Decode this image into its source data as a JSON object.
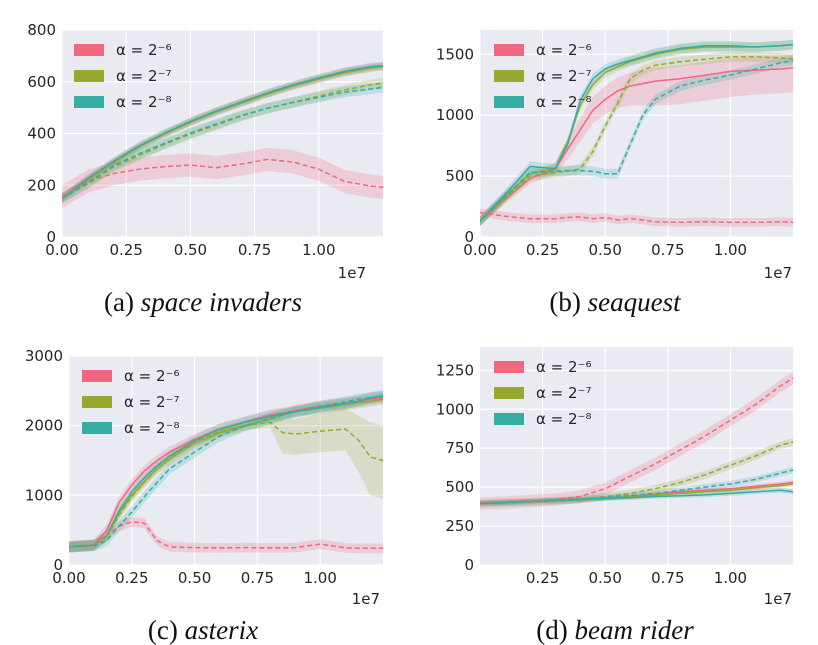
{
  "figure": {
    "colors": {
      "a6": "#f0677f",
      "a7": "#98a831",
      "a8": "#36ada4",
      "bg": "#eaeaf2",
      "grid": "#ffffff"
    },
    "legend": [
      {
        "key": "a6",
        "label": "α = 2⁻⁶"
      },
      {
        "key": "a7",
        "label": "α = 2⁻⁷"
      },
      {
        "key": "a8",
        "label": "α = 2⁻⁸"
      }
    ]
  },
  "chart_data": [
    {
      "type": "line",
      "id": "si",
      "caption_prefix": "(a) ",
      "caption_name": "space invaders",
      "x_offset_label": "1e7",
      "xlim": [
        0,
        12500000
      ],
      "ylim": [
        0,
        800
      ],
      "xticks": [
        0,
        2500000,
        5000000,
        7500000,
        10000000
      ],
      "xtick_labels": [
        "0.00",
        "0.25",
        "0.50",
        "0.75",
        "1.00"
      ],
      "yticks": [
        0,
        200,
        400,
        600,
        800
      ],
      "ytick_labels": [
        "0",
        "200",
        "400",
        "600",
        "800"
      ],
      "x": [
        0,
        1000000,
        2000000,
        3000000,
        4000000,
        5000000,
        6000000,
        7000000,
        8000000,
        9000000,
        10000000,
        11000000,
        12000000,
        12500000
      ],
      "series": [
        {
          "key": "a6",
          "style": "solid",
          "values": [
            150,
            225,
            290,
            350,
            400,
            445,
            485,
            520,
            555,
            585,
            612,
            638,
            655,
            660
          ],
          "band": 15
        },
        {
          "key": "a7",
          "style": "solid",
          "values": [
            150,
            222,
            288,
            348,
            398,
            443,
            483,
            518,
            552,
            583,
            610,
            635,
            652,
            658
          ],
          "band": 15
        },
        {
          "key": "a8",
          "style": "solid",
          "values": [
            150,
            226,
            292,
            352,
            402,
            447,
            487,
            522,
            557,
            588,
            615,
            640,
            658,
            662
          ],
          "band": 15
        },
        {
          "key": "a6",
          "style": "dashed",
          "values": [
            155,
            215,
            245,
            262,
            272,
            278,
            268,
            282,
            300,
            290,
            262,
            215,
            197,
            192
          ],
          "band": 45
        },
        {
          "key": "a7",
          "style": "dashed",
          "values": [
            150,
            205,
            270,
            315,
            358,
            398,
            432,
            468,
            497,
            520,
            545,
            568,
            588,
            595
          ],
          "band": 20
        },
        {
          "key": "a8",
          "style": "dashed",
          "values": [
            150,
            210,
            275,
            322,
            362,
            402,
            437,
            470,
            498,
            520,
            540,
            560,
            572,
            578
          ],
          "band": 20
        }
      ]
    },
    {
      "type": "line",
      "id": "sq",
      "caption_prefix": "(b) ",
      "caption_name": "seaquest",
      "x_offset_label": "1e7",
      "xlim": [
        0,
        12500000
      ],
      "ylim": [
        0,
        1700
      ],
      "xticks": [
        0,
        2500000,
        5000000,
        7500000,
        10000000
      ],
      "xtick_labels": [
        "0.00",
        "0.25",
        "0.50",
        "0.75",
        "1.00"
      ],
      "yticks": [
        0,
        500,
        1000,
        1500
      ],
      "ytick_labels": [
        "0",
        "500",
        "1000",
        "1500"
      ],
      "x": [
        0,
        1000000,
        2000000,
        3000000,
        3500000,
        4000000,
        4500000,
        5000000,
        5500000,
        6000000,
        6500000,
        7000000,
        8000000,
        9000000,
        10000000,
        11000000,
        12000000,
        12500000
      ],
      "series": [
        {
          "key": "a6",
          "style": "solid",
          "values": [
            130,
            310,
            480,
            560,
            720,
            880,
            1040,
            1130,
            1200,
            1240,
            1260,
            1280,
            1300,
            1330,
            1360,
            1370,
            1380,
            1390
          ],
          "band_hi": [
            40,
            40,
            40,
            50,
            80,
            100,
            110,
            110,
            110,
            110,
            110,
            110,
            110,
            110,
            110,
            110,
            110,
            110
          ],
          "band_lo": [
            40,
            40,
            40,
            50,
            80,
            100,
            110,
            120,
            140,
            160,
            180,
            200,
            210,
            210,
            210,
            200,
            200,
            200
          ]
        },
        {
          "key": "a7",
          "style": "solid",
          "values": [
            130,
            330,
            520,
            560,
            780,
            1080,
            1250,
            1350,
            1400,
            1440,
            1470,
            1500,
            1540,
            1560,
            1560,
            1560,
            1570,
            1580
          ],
          "band": 40
        },
        {
          "key": "a8",
          "style": "solid",
          "values": [
            130,
            350,
            580,
            560,
            760,
            1120,
            1300,
            1380,
            1420,
            1450,
            1480,
            1510,
            1550,
            1570,
            1570,
            1560,
            1570,
            1580
          ],
          "band": 40
        },
        {
          "key": "a6",
          "style": "dashed",
          "values": [
            200,
            170,
            150,
            150,
            160,
            165,
            150,
            160,
            140,
            150,
            140,
            125,
            120,
            125,
            120,
            120,
            125,
            120
          ],
          "band": 35
        },
        {
          "key": "a7",
          "style": "dashed",
          "values": [
            130,
            320,
            500,
            530,
            540,
            560,
            700,
            910,
            1100,
            1300,
            1370,
            1410,
            1440,
            1460,
            1480,
            1480,
            1470,
            1460
          ],
          "band": 40
        },
        {
          "key": "a8",
          "style": "dashed",
          "values": [
            130,
            330,
            530,
            540,
            545,
            545,
            540,
            520,
            520,
            760,
            1000,
            1130,
            1240,
            1290,
            1330,
            1380,
            1430,
            1450
          ],
          "band": 40
        }
      ]
    },
    {
      "type": "line",
      "id": "as",
      "caption_prefix": "(c) ",
      "caption_name": "asterix",
      "x_offset_label": "1e7",
      "xlim": [
        0,
        12500000
      ],
      "ylim": [
        0,
        3000
      ],
      "xticks": [
        0,
        2500000,
        5000000,
        7500000,
        10000000
      ],
      "xtick_labels": [
        "0.00",
        "0.25",
        "0.50",
        "0.75",
        "1.00"
      ],
      "yticks": [
        0,
        1000,
        2000,
        3000
      ],
      "ytick_labels": [
        "0",
        "1000",
        "2000",
        "3000"
      ],
      "x": [
        0,
        1000000,
        1500000,
        2000000,
        2500000,
        3000000,
        3500000,
        4000000,
        5000000,
        6000000,
        7000000,
        8000000,
        8500000,
        9000000,
        10000000,
        11000000,
        11500000,
        12000000,
        12500000
      ],
      "series": [
        {
          "key": "a6",
          "style": "solid",
          "values": [
            260,
            290,
            500,
            900,
            1150,
            1350,
            1500,
            1620,
            1800,
            1950,
            2050,
            2150,
            2180,
            2220,
            2280,
            2320,
            2350,
            2380,
            2400
          ],
          "band": 80
        },
        {
          "key": "a7",
          "style": "solid",
          "values": [
            260,
            285,
            420,
            750,
            1000,
            1200,
            1380,
            1520,
            1750,
            1900,
            2000,
            2100,
            2150,
            2200,
            2250,
            2300,
            2330,
            2350,
            2380
          ],
          "band": 80
        },
        {
          "key": "a8",
          "style": "solid",
          "values": [
            260,
            285,
            420,
            780,
            1050,
            1250,
            1420,
            1560,
            1780,
            1950,
            2050,
            2130,
            2170,
            2200,
            2260,
            2320,
            2350,
            2400,
            2430
          ],
          "band": 80
        },
        {
          "key": "a6",
          "style": "dashed",
          "values": [
            260,
            285,
            420,
            560,
            620,
            600,
            350,
            260,
            250,
            245,
            250,
            245,
            245,
            250,
            300,
            245,
            240,
            240,
            240
          ],
          "band": 70
        },
        {
          "key": "a7",
          "style": "dashed",
          "values": [
            260,
            285,
            400,
            720,
            980,
            1190,
            1380,
            1530,
            1760,
            1920,
            2000,
            2050,
            1900,
            1880,
            1920,
            1950,
            1800,
            1550,
            1500
          ],
          "band_hi": [
            60,
            60,
            60,
            60,
            60,
            60,
            60,
            60,
            60,
            60,
            60,
            80,
            200,
            220,
            250,
            300,
            350,
            500,
            500
          ],
          "band_lo": [
            60,
            60,
            60,
            60,
            60,
            60,
            60,
            60,
            60,
            60,
            60,
            80,
            300,
            300,
            300,
            300,
            450,
            550,
            550
          ]
        },
        {
          "key": "a8",
          "style": "dashed",
          "values": [
            260,
            280,
            350,
            560,
            760,
            980,
            1180,
            1380,
            1620,
            1850,
            2000,
            2100,
            2150,
            2200,
            2280,
            2340,
            2380,
            2400,
            2420
          ],
          "band": 80
        }
      ]
    },
    {
      "type": "line",
      "id": "br",
      "caption_prefix": "(d) ",
      "caption_name": "beam rider",
      "x_offset_label": "1e7",
      "xlim": [
        0,
        12500000
      ],
      "ylim": [
        0,
        1400
      ],
      "xticks": [
        2500000,
        5000000,
        7500000,
        10000000
      ],
      "xtick_labels": [
        "0.25",
        "0.50",
        "0.75",
        "1.00"
      ],
      "yticks": [
        0,
        250,
        500,
        750,
        1000,
        1250
      ],
      "ytick_labels": [
        "0",
        "250",
        "500",
        "750",
        "1000",
        "1250"
      ],
      "x": [
        0,
        1000000,
        2000000,
        3000000,
        4000000,
        5000000,
        6000000,
        7000000,
        8000000,
        9000000,
        10000000,
        11000000,
        12000000,
        12500000
      ],
      "series": [
        {
          "key": "a6",
          "style": "solid",
          "values": [
            400,
            405,
            410,
            415,
            420,
            430,
            440,
            455,
            470,
            480,
            490,
            505,
            520,
            530
          ],
          "band": 15
        },
        {
          "key": "a7",
          "style": "solid",
          "values": [
            395,
            400,
            408,
            415,
            420,
            428,
            438,
            450,
            460,
            470,
            480,
            495,
            510,
            520
          ],
          "band": 15
        },
        {
          "key": "a8",
          "style": "solid",
          "values": [
            395,
            400,
            410,
            418,
            422,
            428,
            432,
            440,
            445,
            450,
            460,
            470,
            480,
            470
          ],
          "band": 15
        },
        {
          "key": "a6",
          "style": "dashed",
          "values": [
            395,
            400,
            410,
            420,
            440,
            490,
            570,
            650,
            740,
            830,
            930,
            1030,
            1150,
            1200
          ],
          "band": 40
        },
        {
          "key": "a7",
          "style": "dashed",
          "values": [
            395,
            400,
            405,
            412,
            420,
            440,
            460,
            490,
            530,
            580,
            640,
            700,
            770,
            790
          ],
          "band": 25
        },
        {
          "key": "a8",
          "style": "dashed",
          "values": [
            395,
            400,
            405,
            412,
            420,
            435,
            445,
            460,
            480,
            500,
            520,
            550,
            590,
            610
          ],
          "band": 20
        }
      ]
    }
  ]
}
